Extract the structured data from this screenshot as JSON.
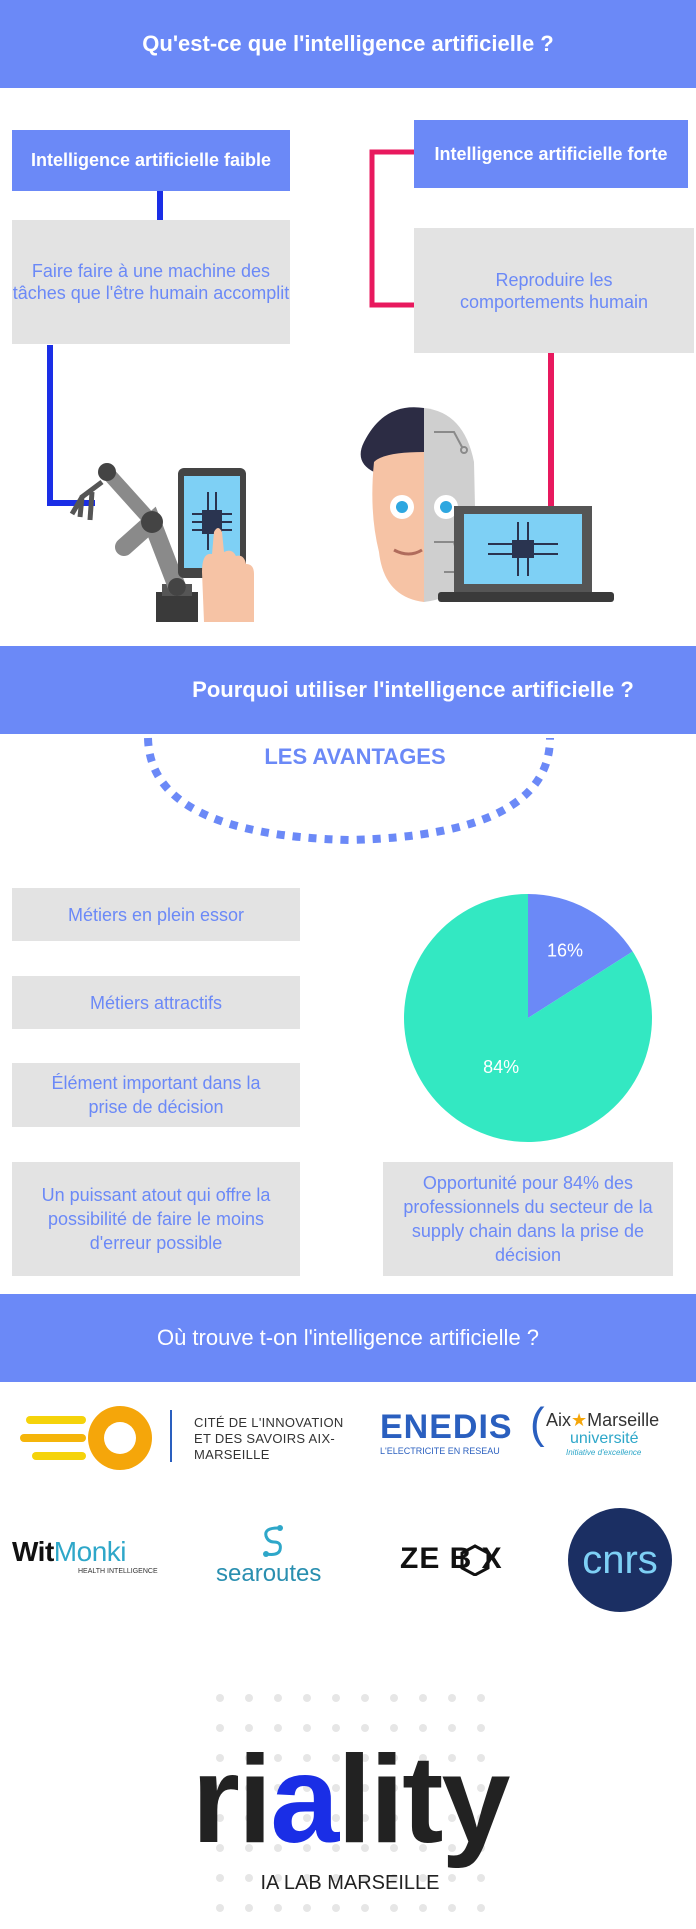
{
  "section1": {
    "title": "Qu'est-ce que l'intelligence artificielle ?",
    "weak_label": "Intelligence artificielle faible",
    "weak_desc": "Faire faire à une machine des tâches que l'être humain accomplit",
    "strong_label": "Intelligence artificielle forte",
    "strong_desc": "Reproduire les comportements humain",
    "icons": [
      "robot-arm-icon",
      "tablet-hand-icon",
      "half-robot-face-icon",
      "laptop-chip-icon"
    ]
  },
  "section2": {
    "title": "Pourquoi utiliser l'intelligence artificielle ?",
    "advantages_title": "LES AVANTAGES",
    "advantages": [
      "Métiers en plein essor",
      "Métiers attractifs",
      "Élément important dans la prise de décision",
      "Un puissant atout qui offre la possibilité de faire le moins d'erreur possible"
    ],
    "pie_caption": "Opportunité pour 84% des professionnels du secteur de la supply chain dans la prise de décision"
  },
  "chart_data": {
    "type": "pie",
    "title": "",
    "categories": [
      "",
      ""
    ],
    "values": [
      16,
      84
    ],
    "labels": [
      "16%",
      "84%"
    ],
    "colors": [
      "#6b89f7",
      "#33e8c2"
    ]
  },
  "section3": {
    "title": "Où trouve t-on l'intelligence artificielle ?",
    "logos": {
      "cite": "CITÉ DE L'INNOVATION ET DES SAVOIRS AIX-MARSEILLE",
      "enedis": "ENEDIS",
      "enedis_sub": "L'ELECTRICITE EN RESEAU",
      "amu_1": "Aix",
      "amu_2": "Marseille",
      "amu_3": "université",
      "amu_4": "Initiative d'excellence",
      "witmonki_1": "Wit",
      "witmonki_2": "Monki",
      "witmonki_sub": "HEALTH INTELLIGENCE",
      "searoutes": "searoutes",
      "zebox": "ZE B X",
      "cnrs": "cnrs"
    }
  },
  "footer": {
    "brand_1": "ri",
    "brand_2": "a",
    "brand_3": "lity",
    "subtitle": "IA LAB MARSEILLE"
  },
  "colors": {
    "banner": "#6b89f7",
    "grey": "#e3e3e3",
    "teal": "#33e8c2",
    "connector_blue": "#1a2ee6",
    "connector_pink": "#e8195e"
  }
}
